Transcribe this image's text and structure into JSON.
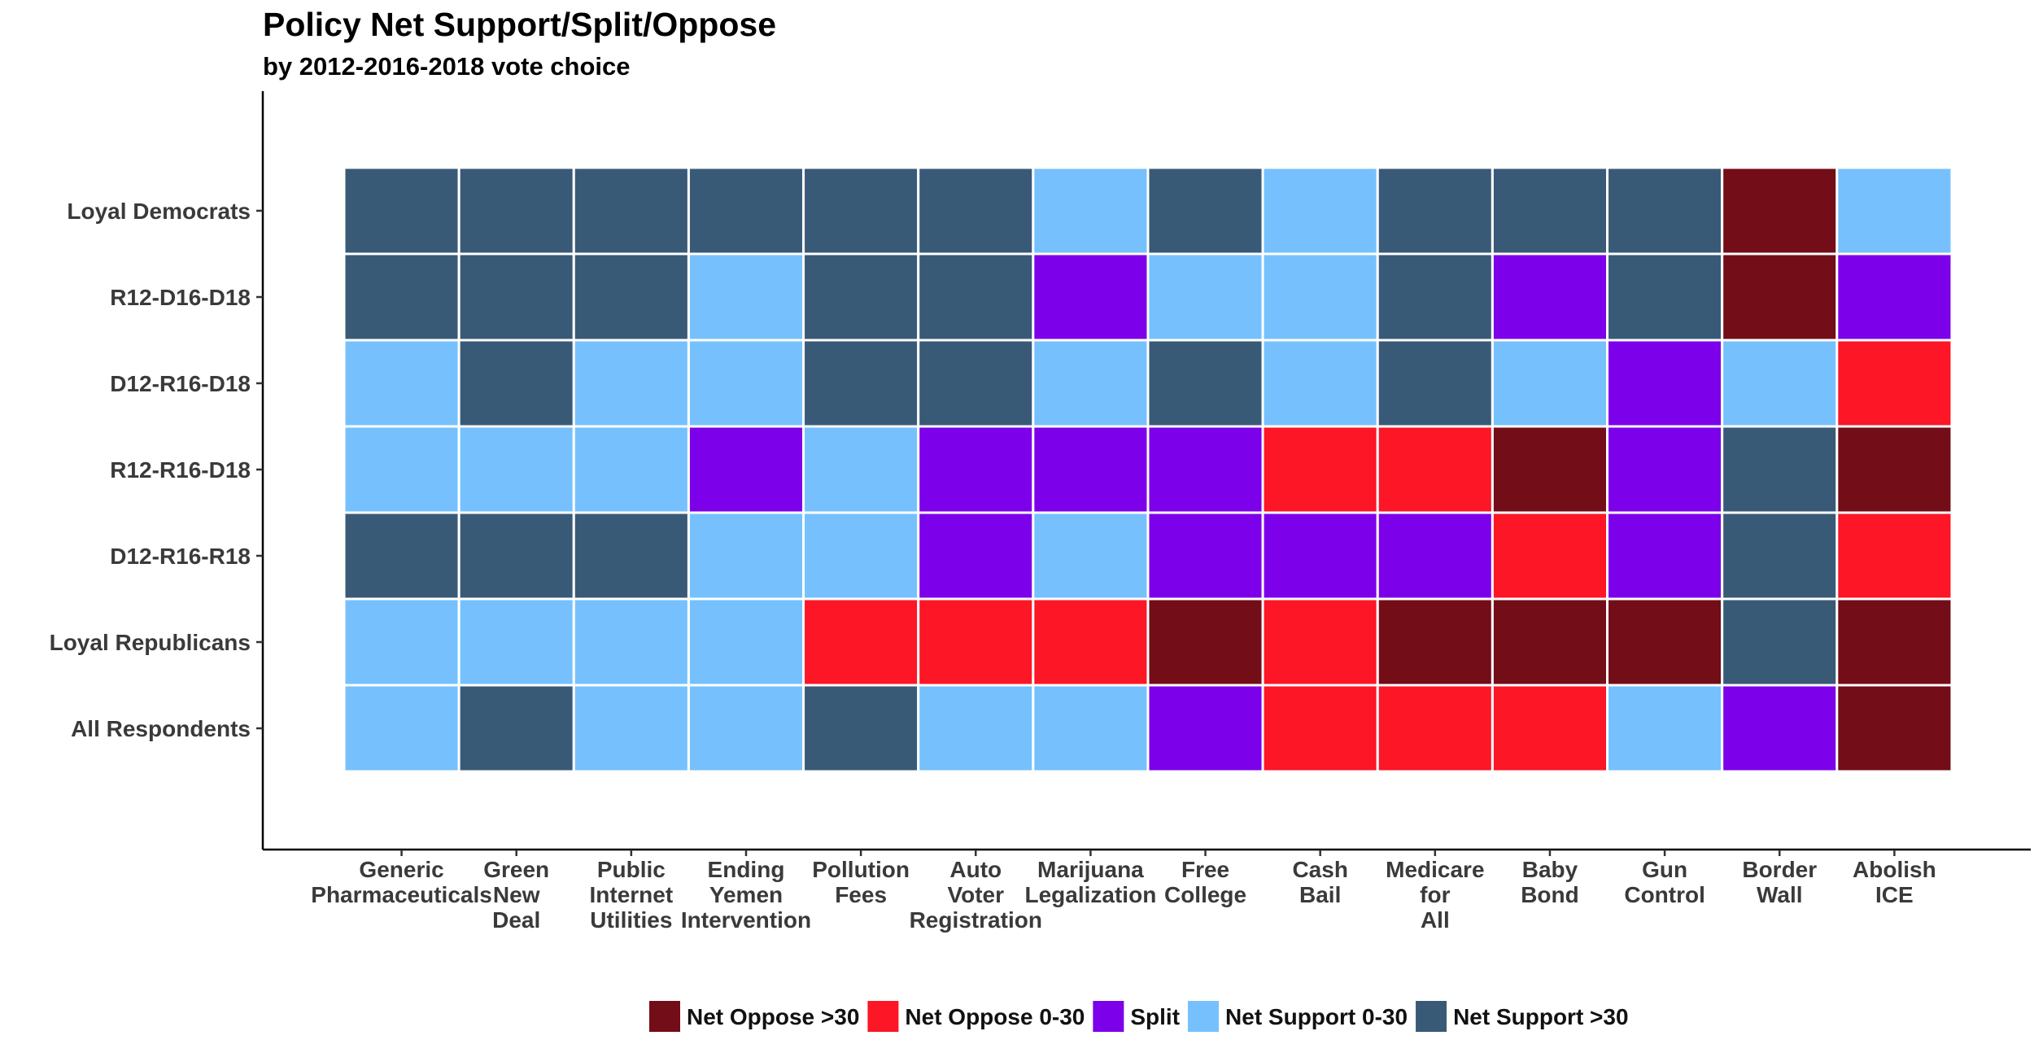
{
  "chart_data": {
    "type": "heatmap",
    "title": "Policy Net Support/Split/Oppose",
    "subtitle": "by 2012-2016-2018 vote choice",
    "xlabel": "",
    "ylabel": "",
    "grid": false,
    "legend_position": "bottom",
    "columns": [
      {
        "key": "generic_pharmaceuticals",
        "label_lines": [
          "Generic",
          "Pharmaceuticals"
        ]
      },
      {
        "key": "green_new_deal",
        "label_lines": [
          "Green",
          "New",
          "Deal"
        ]
      },
      {
        "key": "public_internet_utilities",
        "label_lines": [
          "Public",
          "Internet",
          "Utilities"
        ]
      },
      {
        "key": "ending_yemen_intervention",
        "label_lines": [
          "Ending",
          "Yemen",
          "Intervention"
        ]
      },
      {
        "key": "pollution_fees",
        "label_lines": [
          "Pollution",
          "Fees"
        ]
      },
      {
        "key": "auto_voter_registration",
        "label_lines": [
          "Auto",
          "Voter",
          "Registration"
        ]
      },
      {
        "key": "marijuana_legalization",
        "label_lines": [
          "Marijuana",
          "Legalization"
        ]
      },
      {
        "key": "free_college",
        "label_lines": [
          "Free",
          "College"
        ]
      },
      {
        "key": "cash_bail",
        "label_lines": [
          "Cash",
          "Bail"
        ]
      },
      {
        "key": "medicare_for_all",
        "label_lines": [
          "Medicare",
          "for",
          "All"
        ]
      },
      {
        "key": "baby_bond",
        "label_lines": [
          "Baby",
          "Bond"
        ]
      },
      {
        "key": "gun_control",
        "label_lines": [
          "Gun",
          "Control"
        ]
      },
      {
        "key": "border_wall",
        "label_lines": [
          "Border",
          "Wall"
        ]
      },
      {
        "key": "abolish_ice",
        "label_lines": [
          "Abolish",
          "ICE"
        ]
      }
    ],
    "rows": [
      {
        "label": "Loyal Democrats",
        "values": [
          "Net Support >30",
          "Net Support >30",
          "Net Support >30",
          "Net Support >30",
          "Net Support >30",
          "Net Support >30",
          "Net Support 0-30",
          "Net Support >30",
          "Net Support 0-30",
          "Net Support >30",
          "Net Support >30",
          "Net Support >30",
          "Net Oppose >30",
          "Net Support 0-30"
        ]
      },
      {
        "label": "R12-D16-D18",
        "values": [
          "Net Support >30",
          "Net Support >30",
          "Net Support >30",
          "Net Support 0-30",
          "Net Support >30",
          "Net Support >30",
          "Split",
          "Net Support 0-30",
          "Net Support 0-30",
          "Net Support >30",
          "Split",
          "Net Support >30",
          "Net Oppose >30",
          "Split"
        ]
      },
      {
        "label": "D12-R16-D18",
        "values": [
          "Net Support 0-30",
          "Net Support >30",
          "Net Support 0-30",
          "Net Support 0-30",
          "Net Support >30",
          "Net Support >30",
          "Net Support 0-30",
          "Net Support >30",
          "Net Support 0-30",
          "Net Support >30",
          "Net Support 0-30",
          "Split",
          "Net Support 0-30",
          "Net Oppose 0-30"
        ]
      },
      {
        "label": "R12-R16-D18",
        "values": [
          "Net Support 0-30",
          "Net Support 0-30",
          "Net Support 0-30",
          "Split",
          "Net Support 0-30",
          "Split",
          "Split",
          "Split",
          "Net Oppose 0-30",
          "Net Oppose 0-30",
          "Net Oppose >30",
          "Split",
          "Net Support >30",
          "Net Oppose >30"
        ]
      },
      {
        "label": "D12-R16-R18",
        "values": [
          "Net Support >30",
          "Net Support >30",
          "Net Support >30",
          "Net Support 0-30",
          "Net Support 0-30",
          "Split",
          "Net Support 0-30",
          "Split",
          "Split",
          "Split",
          "Net Oppose 0-30",
          "Split",
          "Net Support >30",
          "Net Oppose 0-30"
        ]
      },
      {
        "label": "Loyal Republicans",
        "values": [
          "Net Support 0-30",
          "Net Support 0-30",
          "Net Support 0-30",
          "Net Support 0-30",
          "Net Oppose 0-30",
          "Net Oppose 0-30",
          "Net Oppose 0-30",
          "Net Oppose >30",
          "Net Oppose 0-30",
          "Net Oppose >30",
          "Net Oppose >30",
          "Net Oppose >30",
          "Net Support >30",
          "Net Oppose >30"
        ]
      },
      {
        "label": "All Respondents",
        "values": [
          "Net Support 0-30",
          "Net Support >30",
          "Net Support 0-30",
          "Net Support 0-30",
          "Net Support >30",
          "Net Support 0-30",
          "Net Support 0-30",
          "Split",
          "Net Oppose 0-30",
          "Net Oppose 0-30",
          "Net Oppose 0-30",
          "Net Support 0-30",
          "Split",
          "Net Oppose >30"
        ]
      }
    ],
    "legend": [
      {
        "label": "Net Oppose >30",
        "color": "#730D17"
      },
      {
        "label": "Net Oppose 0-30",
        "color": "#FC1626"
      },
      {
        "label": "Split",
        "color": "#7C00EA"
      },
      {
        "label": "Net Support 0-30",
        "color": "#76C1FD"
      },
      {
        "label": "Net Support >30",
        "color": "#395A77"
      }
    ]
  }
}
